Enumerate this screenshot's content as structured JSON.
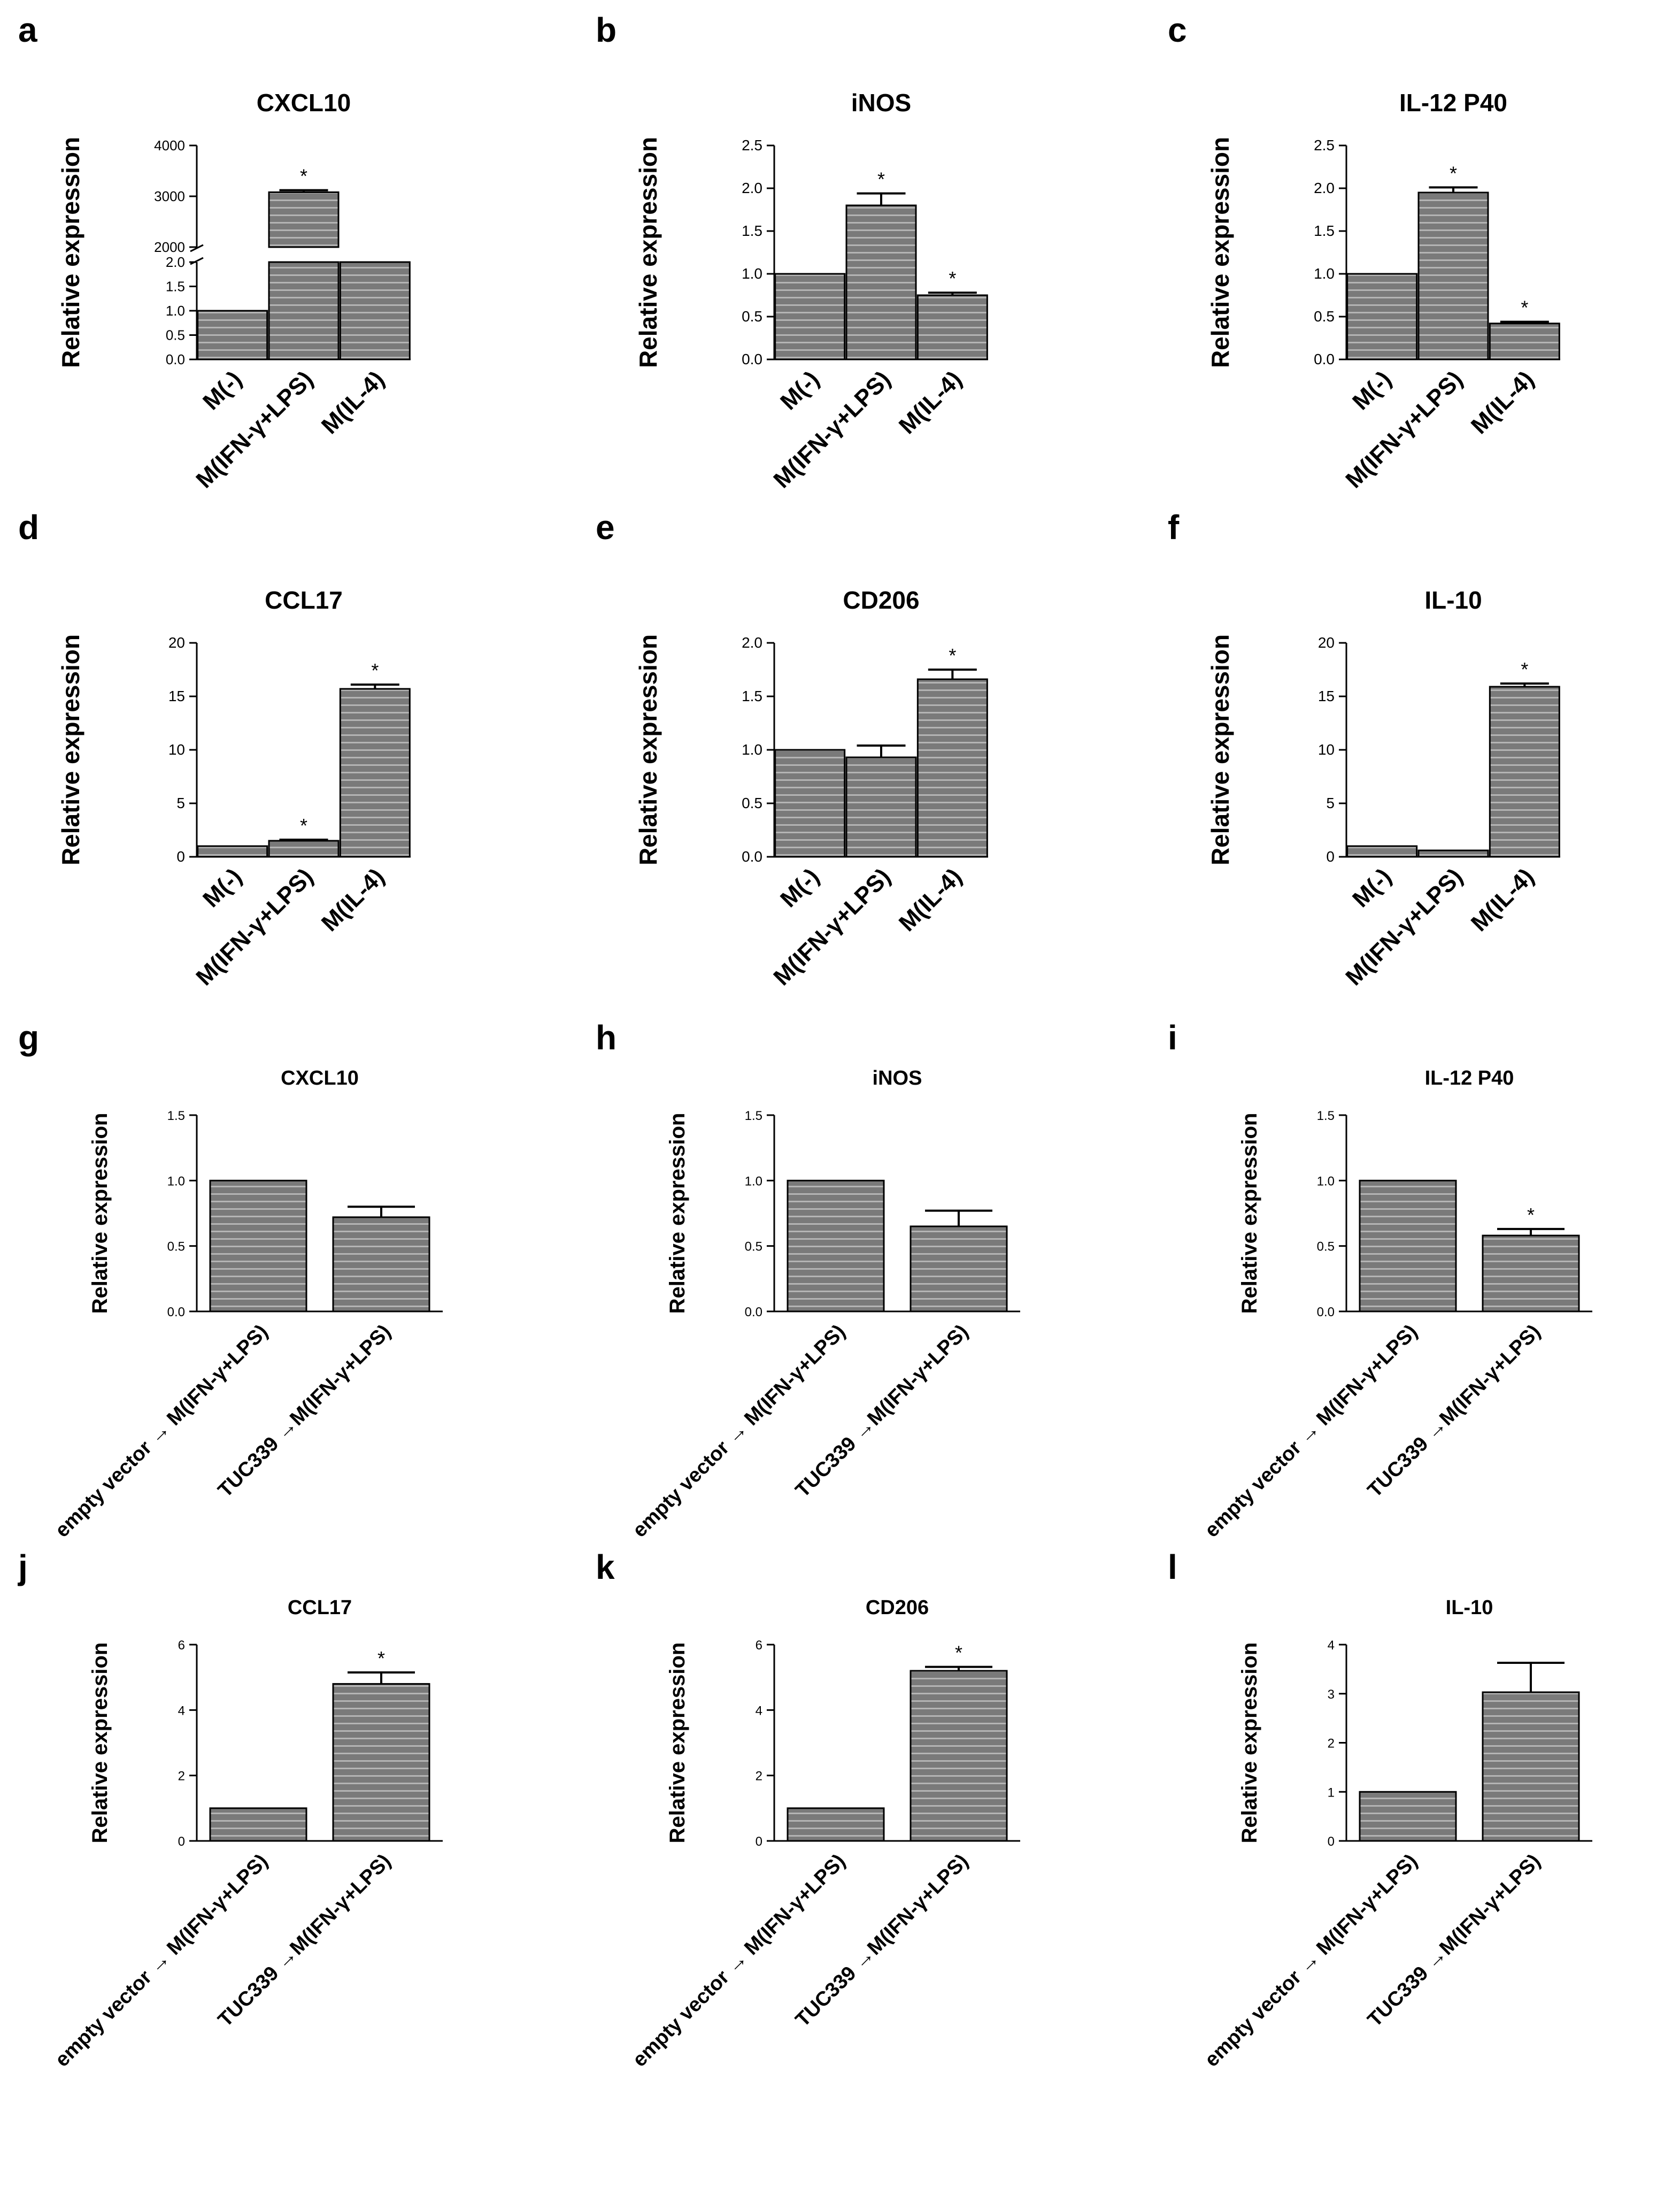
{
  "figure": {
    "colors": {
      "bar_fill": "#7a7a7a",
      "bar_stripe": "#b4b4b4",
      "axis": "#000000",
      "text": "#000000"
    },
    "ylabel": "Relative expression",
    "significance_mark": "*"
  },
  "chart_data": [
    {
      "panel": "a",
      "type": "bar",
      "title": "CXCL10",
      "ylabel": "Relative expression",
      "categories": [
        "M(-)",
        "M(IFN-γ+LPS)",
        "M(IL-4)"
      ],
      "values": [
        1.0,
        3080,
        2.0
      ],
      "errors": [
        0,
        40,
        0
      ],
      "significant": [
        false,
        true,
        false
      ],
      "broken_axis": {
        "lower_range": [
          0,
          2.0
        ],
        "upper_range": [
          2000,
          4000
        ],
        "lower_ticks": [
          0.0,
          0.5,
          1.0,
          1.5,
          2.0
        ],
        "upper_ticks": [
          2000,
          3000,
          4000
        ],
        "lower_tick_labels": [
          "0.0",
          "0.5",
          "1.0",
          "1.5",
          "2.0"
        ],
        "upper_tick_labels": [
          "2000",
          "3000",
          "4000"
        ]
      }
    },
    {
      "panel": "b",
      "type": "bar",
      "title": "iNOS",
      "ylabel": "Relative expression",
      "categories": [
        "M(-)",
        "M(IFN-γ+LPS)",
        "M(IL-4)"
      ],
      "values": [
        1.0,
        1.8,
        0.75
      ],
      "errors": [
        0,
        0.14,
        0.03
      ],
      "significant": [
        false,
        true,
        true
      ],
      "ylim": [
        0,
        2.5
      ],
      "yticks": [
        0,
        0.5,
        1.0,
        1.5,
        2.0,
        2.5
      ],
      "ytick_labels": [
        "0.0",
        "0.5",
        "1.0",
        "1.5",
        "2.0",
        "2.5"
      ]
    },
    {
      "panel": "c",
      "type": "bar",
      "title": "IL-12 P40",
      "ylabel": "Relative expression",
      "categories": [
        "M(-)",
        "M(IFN-γ+LPS)",
        "M(IL-4)"
      ],
      "values": [
        1.0,
        1.95,
        0.42
      ],
      "errors": [
        0,
        0.06,
        0.02
      ],
      "significant": [
        false,
        true,
        true
      ],
      "ylim": [
        0,
        2.5
      ],
      "yticks": [
        0,
        0.5,
        1.0,
        1.5,
        2.0,
        2.5
      ],
      "ytick_labels": [
        "0.0",
        "0.5",
        "1.0",
        "1.5",
        "2.0",
        "2.5"
      ]
    },
    {
      "panel": "d",
      "type": "bar",
      "title": "CCL17",
      "ylabel": "Relative expression",
      "categories": [
        "M(-)",
        "M(IFN-γ+LPS)",
        "M(IL-4)"
      ],
      "values": [
        1.0,
        1.5,
        15.7
      ],
      "errors": [
        0,
        0.1,
        0.4
      ],
      "significant": [
        false,
        true,
        true
      ],
      "ylim": [
        0,
        20
      ],
      "yticks": [
        0,
        5,
        10,
        15,
        20
      ],
      "ytick_labels": [
        "0",
        "5",
        "10",
        "15",
        "20"
      ]
    },
    {
      "panel": "e",
      "type": "bar",
      "title": "CD206",
      "ylabel": "Relative expression",
      "categories": [
        "M(-)",
        "M(IFN-γ+LPS)",
        "M(IL-4)"
      ],
      "values": [
        1.0,
        0.93,
        1.66
      ],
      "errors": [
        0,
        0.11,
        0.09
      ],
      "significant": [
        false,
        false,
        true
      ],
      "ylim": [
        0,
        2.0
      ],
      "yticks": [
        0,
        0.5,
        1.0,
        1.5,
        2.0
      ],
      "ytick_labels": [
        "0.0",
        "0.5",
        "1.0",
        "1.5",
        "2.0"
      ]
    },
    {
      "panel": "f",
      "type": "bar",
      "title": "IL-10",
      "ylabel": "Relative expression",
      "categories": [
        "M(-)",
        "M(IFN-γ+LPS)",
        "M(IL-4)"
      ],
      "values": [
        1.0,
        0.6,
        15.9
      ],
      "errors": [
        0,
        0,
        0.3
      ],
      "significant": [
        false,
        false,
        true
      ],
      "ylim": [
        0,
        20
      ],
      "yticks": [
        0,
        5,
        10,
        15,
        20
      ],
      "ytick_labels": [
        "0",
        "5",
        "10",
        "15",
        "20"
      ]
    },
    {
      "panel": "g",
      "type": "bar",
      "title": "CXCL10",
      "ylabel": "Relative expression",
      "categories": [
        "empty vector → M(IFN-γ+LPS)",
        "TUC339 →M(IFN-γ+LPS)"
      ],
      "values": [
        1.0,
        0.72
      ],
      "errors": [
        0,
        0.08
      ],
      "significant": [
        false,
        false
      ],
      "ylim": [
        0,
        1.5
      ],
      "yticks": [
        0,
        0.5,
        1.0,
        1.5
      ],
      "ytick_labels": [
        "0.0",
        "0.5",
        "1.0",
        "1.5"
      ]
    },
    {
      "panel": "h",
      "type": "bar",
      "title": "iNOS",
      "ylabel": "Relative expression",
      "categories": [
        "empty vector → M(IFN-γ+LPS)",
        "TUC339 →M(IFN-γ+LPS)"
      ],
      "values": [
        1.0,
        0.65
      ],
      "errors": [
        0,
        0.12
      ],
      "significant": [
        false,
        false
      ],
      "ylim": [
        0,
        1.5
      ],
      "yticks": [
        0,
        0.5,
        1.0,
        1.5
      ],
      "ytick_labels": [
        "0.0",
        "0.5",
        "1.0",
        "1.5"
      ]
    },
    {
      "panel": "i",
      "type": "bar",
      "title": "IL-12 P40",
      "ylabel": "Relative expression",
      "categories": [
        "empty vector → M(IFN-γ+LPS)",
        "TUC339 →M(IFN-γ+LPS)"
      ],
      "values": [
        1.0,
        0.58
      ],
      "errors": [
        0,
        0.05
      ],
      "significant": [
        false,
        true
      ],
      "ylim": [
        0,
        1.5
      ],
      "yticks": [
        0,
        0.5,
        1.0,
        1.5
      ],
      "ytick_labels": [
        "0.0",
        "0.5",
        "1.0",
        "1.5"
      ]
    },
    {
      "panel": "j",
      "type": "bar",
      "title": "CCL17",
      "ylabel": "Relative expression",
      "categories": [
        "empty vector → M(IFN-γ+LPS)",
        "TUC339 →M(IFN-γ+LPS)"
      ],
      "values": [
        1.0,
        4.8
      ],
      "errors": [
        0,
        0.35
      ],
      "significant": [
        false,
        true
      ],
      "ylim": [
        0,
        6
      ],
      "yticks": [
        0,
        2,
        4,
        6
      ],
      "ytick_labels": [
        "0",
        "2",
        "4",
        "6"
      ]
    },
    {
      "panel": "k",
      "type": "bar",
      "title": "CD206",
      "ylabel": "Relative expression",
      "categories": [
        "empty vector → M(IFN-γ+LPS)",
        "TUC339 →M(IFN-γ+LPS)"
      ],
      "values": [
        1.0,
        5.2
      ],
      "errors": [
        0,
        0.12
      ],
      "significant": [
        false,
        true
      ],
      "ylim": [
        0,
        6
      ],
      "yticks": [
        0,
        2,
        4,
        6
      ],
      "ytick_labels": [
        "0",
        "2",
        "4",
        "6"
      ]
    },
    {
      "panel": "l",
      "type": "bar",
      "title": "IL-10",
      "ylabel": "Relative expression",
      "categories": [
        "empty vector → M(IFN-γ+LPS)",
        "TUC339 →M(IFN-γ+LPS)"
      ],
      "values": [
        1.0,
        3.03
      ],
      "errors": [
        0,
        0.6
      ],
      "significant": [
        false,
        false
      ],
      "ylim": [
        0,
        4
      ],
      "yticks": [
        0,
        1,
        2,
        3,
        4
      ],
      "ytick_labels": [
        "0",
        "1",
        "2",
        "3",
        "4"
      ]
    }
  ]
}
